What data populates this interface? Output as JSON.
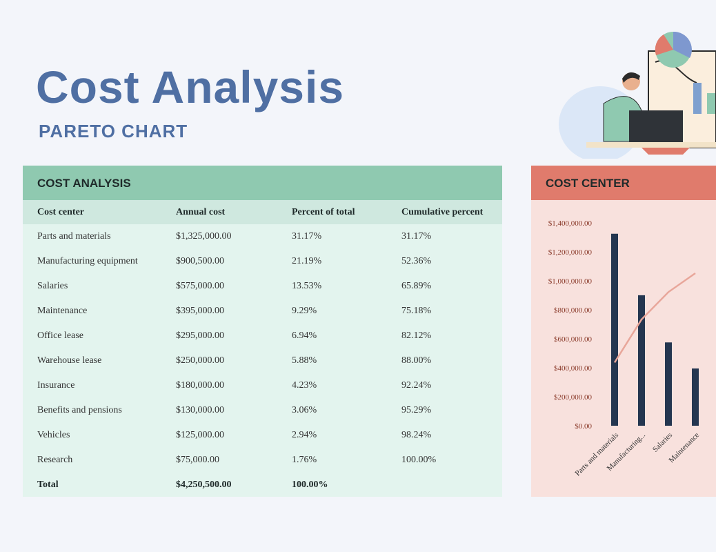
{
  "header": {
    "title": "Cost Analysis",
    "subtitle": "PARETO CHART"
  },
  "table": {
    "title": "COST ANALYSIS",
    "columns": [
      "Cost center",
      "Annual cost",
      "Percent of total",
      "Cumulative percent"
    ],
    "rows": [
      [
        "Parts and materials",
        "$1,325,000.00",
        "31.17%",
        "31.17%"
      ],
      [
        "Manufacturing equipment",
        "$900,500.00",
        "21.19%",
        "52.36%"
      ],
      [
        "Salaries",
        "$575,000.00",
        "13.53%",
        "65.89%"
      ],
      [
        "Maintenance",
        "$395,000.00",
        "9.29%",
        "75.18%"
      ],
      [
        "Office lease",
        "$295,000.00",
        "6.94%",
        "82.12%"
      ],
      [
        "Warehouse lease",
        "$250,000.00",
        "5.88%",
        "88.00%"
      ],
      [
        "Insurance",
        "$180,000.00",
        "4.23%",
        "92.24%"
      ],
      [
        "Benefits and pensions",
        "$130,000.00",
        "3.06%",
        "95.29%"
      ],
      [
        "Vehicles",
        "$125,000.00",
        "2.94%",
        "98.24%"
      ],
      [
        "Research",
        "$75,000.00",
        "1.76%",
        "100.00%"
      ]
    ],
    "total": [
      "Total",
      "$4,250,500.00",
      "100.00%"
    ]
  },
  "chart_data": {
    "type": "bar",
    "title": "COST CENTER",
    "categories": [
      "Parts and materials",
      "Manufacturing...",
      "Salaries",
      "Maintenance"
    ],
    "series": [
      {
        "name": "Annual cost",
        "type": "bar",
        "color": "#243650",
        "values": [
          1325000,
          900500,
          575000,
          395000
        ]
      },
      {
        "name": "Cumulative percent",
        "type": "line",
        "axis": "y2",
        "color": "#e8a69a",
        "values": [
          31.17,
          52.36,
          65.89,
          75.18
        ]
      }
    ],
    "ylim": [
      0,
      1400000
    ],
    "yticks": [
      {
        "value": 0,
        "label": "$0.00"
      },
      {
        "value": 200000,
        "label": "$200,000.00"
      },
      {
        "value": 400000,
        "label": "$400,000.00"
      },
      {
        "value": 600000,
        "label": "$600,000.00"
      },
      {
        "value": 800000,
        "label": "$800,000.00"
      },
      {
        "value": 1000000,
        "label": "$1,000,000.00"
      },
      {
        "value": 1200000,
        "label": "$1,200,000.00"
      },
      {
        "value": 1400000,
        "label": "$1,400,000.00"
      }
    ],
    "y2lim": [
      0,
      100
    ]
  }
}
